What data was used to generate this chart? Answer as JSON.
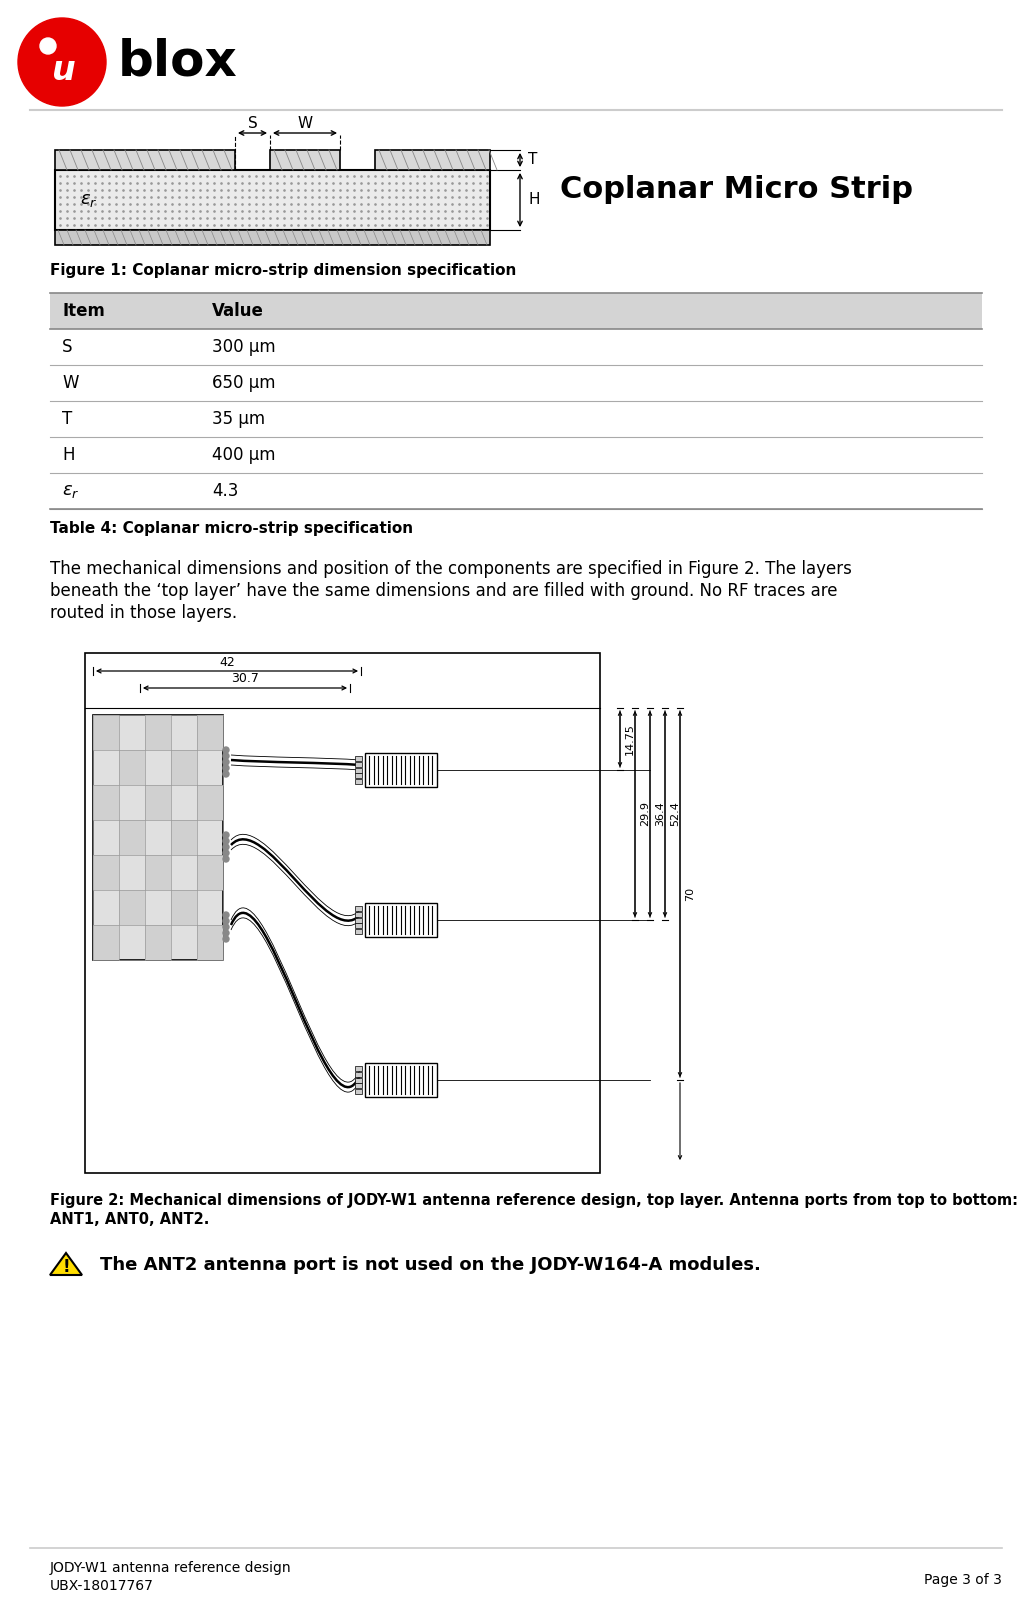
{
  "page_bg": "#ffffff",
  "title_text": "Coplanar Micro Strip",
  "fig1_caption": "Figure 1: Coplanar micro-strip dimension specification",
  "table_header": [
    "Item",
    "Value"
  ],
  "table_rows": [
    [
      "S",
      "300 μm"
    ],
    [
      "W",
      "650 μm"
    ],
    [
      "T",
      "35 μm"
    ],
    [
      "H",
      "400 μm"
    ],
    [
      "εr",
      "4.3"
    ]
  ],
  "table4_caption": "Table 4: Coplanar micro-strip specification",
  "body_text": "The mechanical dimensions and position of the components are specified in Figure 2. The layers\nbeneath the ‘top layer’ have the same dimensions and are filled with ground. No RF traces are\nrouted in those layers.",
  "fig2_caption": "Figure 2: Mechanical dimensions of JODY-W1 antenna reference design, top layer. Antenna ports from top to bottom:\nANT1, ANT0, ANT2.",
  "warning_text": "The ANT2 antenna port is not used on the JODY-W164-A modules.",
  "footer_left1": "JODY-W1 antenna reference design",
  "footer_left2": "UBX-18017767",
  "footer_right": "Page 3 of 3",
  "table_header_bg": "#d4d4d4",
  "table_line_color": "#aaaaaa",
  "dim_42": "42",
  "dim_307": "30.7",
  "dim_1475": "14.75",
  "dim_299": "29.9",
  "dim_364": "36.4",
  "dim_524": "52.4",
  "dim_70": "70"
}
